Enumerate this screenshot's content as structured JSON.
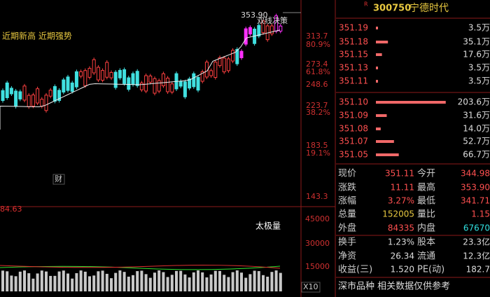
{
  "chart_area": {
    "high_label": "353.90",
    "indicator": "双线决策",
    "tags": "近期新高 近期强势",
    "badge": "财",
    "price_axis": [
      "313.7",
      "80.9%",
      "273.4",
      "61.8%",
      "248.6",
      "223.7",
      "38.2%",
      "183.5",
      "19.1%",
      "143.3"
    ],
    "volume_value": "84.63",
    "volume_title": "太极量",
    "volume_axis": [
      "45000",
      "30000",
      "15000"
    ],
    "multiplier": "X10"
  },
  "quote": {
    "flag": "R",
    "code": "300750",
    "name": "宁德时代",
    "asks": [
      {
        "price": "351.19",
        "qty": 3.5,
        "qty_label": "3.5万"
      },
      {
        "price": "351.18",
        "qty": 35.1,
        "qty_label": "35.1万"
      },
      {
        "price": "351.15",
        "qty": 17.6,
        "qty_label": "17.6万"
      },
      {
        "price": "351.13",
        "qty": 3.5,
        "qty_label": "3.5万"
      },
      {
        "price": "351.11",
        "qty": 3.5,
        "qty_label": "3.5万"
      }
    ],
    "bids": [
      {
        "price": "351.10",
        "qty": 203.6,
        "qty_label": "203.6万"
      },
      {
        "price": "351.09",
        "qty": 31.6,
        "qty_label": "31.6万"
      },
      {
        "price": "351.08",
        "qty": 14.0,
        "qty_label": "14.0万"
      },
      {
        "price": "351.07",
        "qty": 52.7,
        "qty_label": "52.7万"
      },
      {
        "price": "351.05",
        "qty": 66.7,
        "qty_label": "66.7万"
      }
    ],
    "stats": [
      [
        "现价",
        "351.11",
        "今开",
        "344.98"
      ],
      [
        "涨跌",
        "11.11",
        "最高",
        "353.90"
      ],
      [
        "涨幅",
        "3.27%",
        "最低",
        "341.71"
      ],
      [
        "总量",
        "152005",
        "量比",
        "1.15"
      ],
      [
        "外盘",
        "84335",
        "内盘",
        "67670"
      ],
      [
        "换手",
        "1.23%",
        "股本",
        "23.3亿"
      ],
      [
        "净资",
        "26.34",
        "流通",
        "12.3亿"
      ],
      [
        "收益(三)",
        "1.520",
        "PE(动)",
        "182.7"
      ]
    ],
    "footer": "深市品种  相关数据仅供参考"
  }
}
